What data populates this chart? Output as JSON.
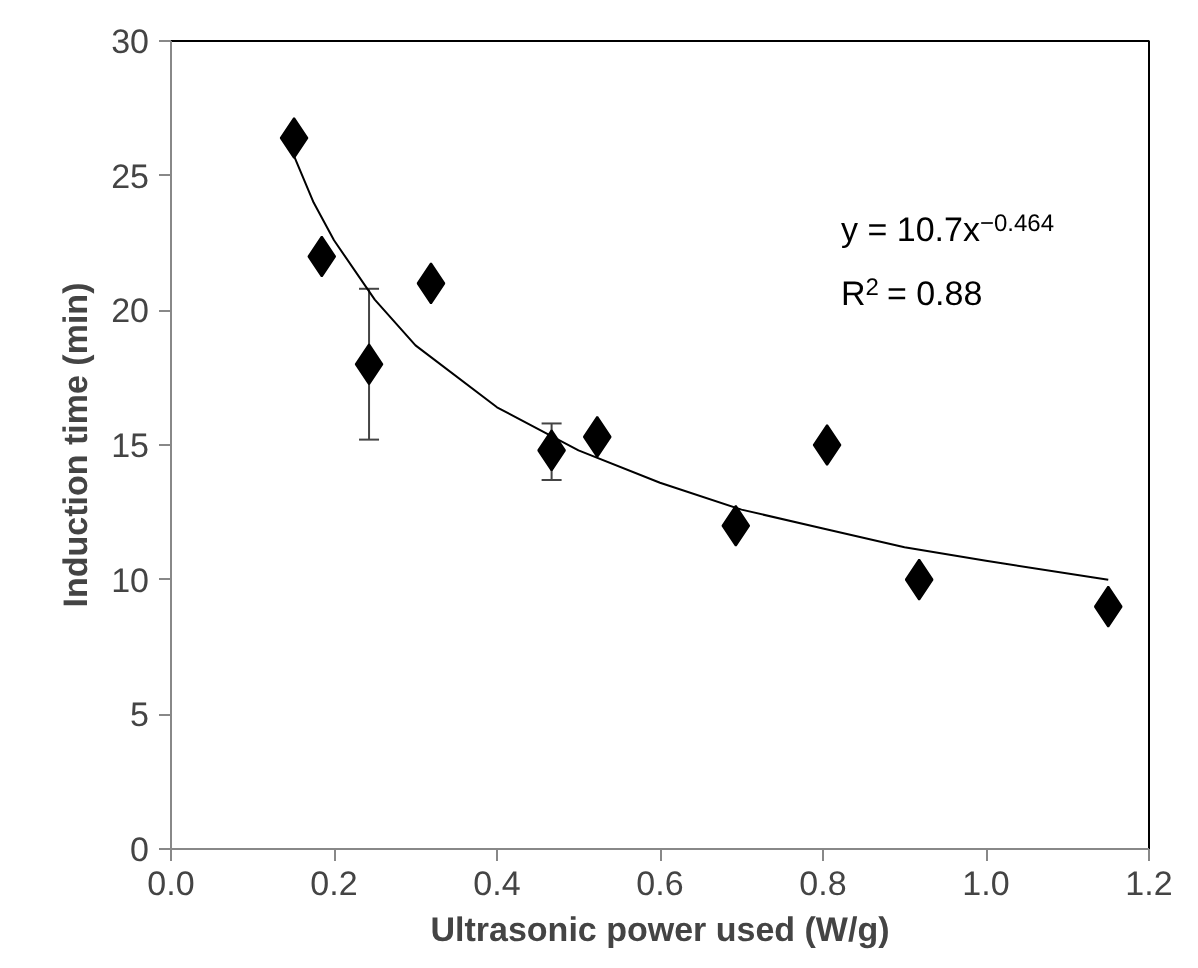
{
  "chart_data": {
    "type": "scatter",
    "xlabel": "Ultrasonic power used (W/g)",
    "ylabel": "Induction time (min)",
    "xlim": [
      0,
      1.2
    ],
    "ylim": [
      0,
      30
    ],
    "xticks": [
      {
        "value": 0,
        "label": "0.0"
      },
      {
        "value": 0.2,
        "label": "0.2"
      },
      {
        "value": 0.4,
        "label": "0.4"
      },
      {
        "value": 0.6,
        "label": "0.6"
      },
      {
        "value": 0.8,
        "label": "0.8"
      },
      {
        "value": 1.0,
        "label": "1.0"
      },
      {
        "value": 1.2,
        "label": "1.2"
      }
    ],
    "yticks": [
      0,
      5,
      10,
      15,
      20,
      25,
      30
    ],
    "grid": false,
    "marker": "diamond",
    "annotations": [
      "y = 10.7x$^{−0.464}$",
      "R$^{2}$ = 0.88"
    ],
    "series": [
      {
        "color": "#000000",
        "x": [
          0.151,
          0.185,
          0.243,
          0.319,
          0.467,
          0.523,
          0.693,
          0.805,
          0.918,
          1.15
        ],
        "values": [
          26.4,
          22.0,
          18.0,
          21.0,
          14.8,
          15.3,
          12.0,
          15.0,
          10.0,
          9.0
        ],
        "errors": [
          null,
          null,
          [
            15.2,
            20.8
          ],
          null,
          [
            13.7,
            15.8
          ],
          null,
          null,
          null,
          null,
          null
        ]
      },
      {
        "type": "line",
        "color": "#000000",
        "line_style": "solid",
        "marker": "none",
        "x": [
          0.15,
          0.175,
          0.2,
          0.25,
          0.3,
          0.4,
          0.5,
          0.6,
          0.7,
          0.8,
          0.9,
          1.0,
          1.15
        ],
        "values": [
          25.8,
          24.0,
          22.6,
          20.4,
          18.7,
          16.4,
          14.8,
          13.6,
          12.6,
          11.9,
          11.2,
          10.7,
          10.0
        ]
      }
    ]
  }
}
